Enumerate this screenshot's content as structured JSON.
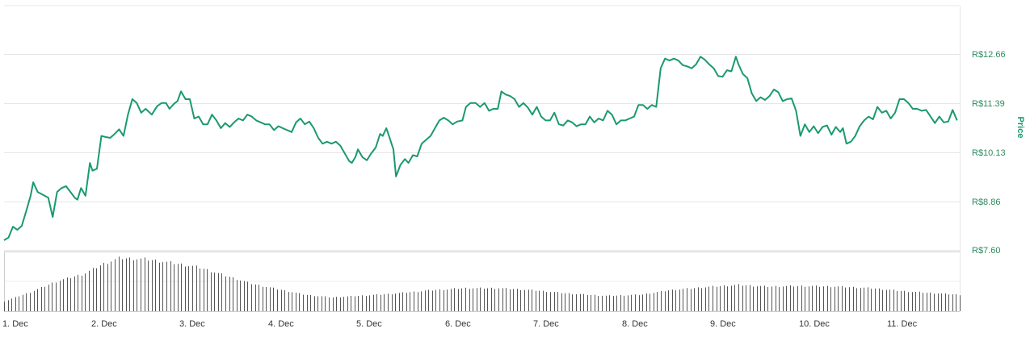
{
  "chart_data": {
    "type": "line",
    "ylabel": "Price",
    "y_ticks": [
      "R$7.60",
      "R$8.86",
      "R$10.13",
      "R$11.39",
      "R$12.66"
    ],
    "y_tick_values": [
      7.6,
      8.86,
      10.13,
      11.39,
      12.66
    ],
    "ylim": [
      7.6,
      13.92
    ],
    "x_ticks": [
      "1. Dec",
      "2. Dec",
      "3. Dec",
      "4. Dec",
      "5. Dec",
      "6. Dec",
      "7. Dec",
      "8. Dec",
      "9. Dec",
      "10. Dec",
      "11. Dec"
    ],
    "xlim": [
      0,
      10.8
    ],
    "grid": true,
    "colors": {
      "line": "#1a9a6c",
      "volume": "#555555",
      "grid": "#e6e6e6"
    },
    "series": [
      {
        "values": [
          [
            0.0,
            7.85
          ],
          [
            0.05,
            7.92
          ],
          [
            0.1,
            8.2
          ],
          [
            0.15,
            8.12
          ],
          [
            0.2,
            8.22
          ],
          [
            0.25,
            8.6
          ],
          [
            0.3,
            9.0
          ],
          [
            0.33,
            9.35
          ],
          [
            0.38,
            9.1
          ],
          [
            0.42,
            9.05
          ],
          [
            0.5,
            8.95
          ],
          [
            0.55,
            8.45
          ],
          [
            0.6,
            9.1
          ],
          [
            0.65,
            9.2
          ],
          [
            0.7,
            9.25
          ],
          [
            0.75,
            9.1
          ],
          [
            0.8,
            8.95
          ],
          [
            0.83,
            8.9
          ],
          [
            0.87,
            9.2
          ],
          [
            0.92,
            9.0
          ],
          [
            0.97,
            9.85
          ],
          [
            1.0,
            9.65
          ],
          [
            1.05,
            9.7
          ],
          [
            1.1,
            10.55
          ],
          [
            1.15,
            10.52
          ],
          [
            1.2,
            10.5
          ],
          [
            1.25,
            10.6
          ],
          [
            1.3,
            10.72
          ],
          [
            1.35,
            10.55
          ],
          [
            1.4,
            11.1
          ],
          [
            1.45,
            11.5
          ],
          [
            1.5,
            11.4
          ],
          [
            1.55,
            11.15
          ],
          [
            1.6,
            11.25
          ],
          [
            1.67,
            11.1
          ],
          [
            1.73,
            11.32
          ],
          [
            1.78,
            11.4
          ],
          [
            1.83,
            11.4
          ],
          [
            1.87,
            11.25
          ],
          [
            1.92,
            11.38
          ],
          [
            1.96,
            11.45
          ],
          [
            2.0,
            11.7
          ],
          [
            2.05,
            11.5
          ],
          [
            2.1,
            11.5
          ],
          [
            2.15,
            11.0
          ],
          [
            2.2,
            11.05
          ],
          [
            2.25,
            10.85
          ],
          [
            2.3,
            10.85
          ],
          [
            2.35,
            11.1
          ],
          [
            2.4,
            10.95
          ],
          [
            2.45,
            10.75
          ],
          [
            2.5,
            10.88
          ],
          [
            2.55,
            10.78
          ],
          [
            2.6,
            10.9
          ],
          [
            2.65,
            11.0
          ],
          [
            2.7,
            10.95
          ],
          [
            2.75,
            11.1
          ],
          [
            2.8,
            11.05
          ],
          [
            2.85,
            10.95
          ],
          [
            2.9,
            10.9
          ],
          [
            2.95,
            10.85
          ],
          [
            3.0,
            10.85
          ],
          [
            3.05,
            10.7
          ],
          [
            3.1,
            10.8
          ],
          [
            3.15,
            10.75
          ],
          [
            3.2,
            10.7
          ],
          [
            3.25,
            10.65
          ],
          [
            3.3,
            10.9
          ],
          [
            3.35,
            11.0
          ],
          [
            3.4,
            10.85
          ],
          [
            3.45,
            10.92
          ],
          [
            3.5,
            10.75
          ],
          [
            3.55,
            10.5
          ],
          [
            3.6,
            10.35
          ],
          [
            3.65,
            10.4
          ],
          [
            3.7,
            10.35
          ],
          [
            3.75,
            10.4
          ],
          [
            3.8,
            10.3
          ],
          [
            3.85,
            10.1
          ],
          [
            3.9,
            9.9
          ],
          [
            3.93,
            9.85
          ],
          [
            3.97,
            10.0
          ],
          [
            4.0,
            10.2
          ],
          [
            4.05,
            10.0
          ],
          [
            4.1,
            9.92
          ],
          [
            4.15,
            10.1
          ],
          [
            4.2,
            10.25
          ],
          [
            4.25,
            10.6
          ],
          [
            4.28,
            10.55
          ],
          [
            4.32,
            10.75
          ],
          [
            4.35,
            10.55
          ],
          [
            4.4,
            10.2
          ],
          [
            4.43,
            9.5
          ],
          [
            4.48,
            9.8
          ],
          [
            4.53,
            9.95
          ],
          [
            4.57,
            9.85
          ],
          [
            4.62,
            10.05
          ],
          [
            4.67,
            10.02
          ],
          [
            4.72,
            10.35
          ],
          [
            4.77,
            10.45
          ],
          [
            4.82,
            10.55
          ],
          [
            4.87,
            10.75
          ],
          [
            4.92,
            10.95
          ],
          [
            4.97,
            11.02
          ],
          [
            5.02,
            10.95
          ],
          [
            5.07,
            10.85
          ],
          [
            5.12,
            10.92
          ],
          [
            5.18,
            10.95
          ],
          [
            5.22,
            11.3
          ],
          [
            5.27,
            11.4
          ],
          [
            5.33,
            11.4
          ],
          [
            5.38,
            11.3
          ],
          [
            5.43,
            11.4
          ],
          [
            5.48,
            11.2
          ],
          [
            5.53,
            11.25
          ],
          [
            5.58,
            11.25
          ],
          [
            5.62,
            11.7
          ],
          [
            5.67,
            11.62
          ],
          [
            5.72,
            11.58
          ],
          [
            5.77,
            11.5
          ],
          [
            5.82,
            11.3
          ],
          [
            5.87,
            11.4
          ],
          [
            5.92,
            11.28
          ],
          [
            5.97,
            11.1
          ],
          [
            6.02,
            11.3
          ],
          [
            6.07,
            11.05
          ],
          [
            6.12,
            10.95
          ],
          [
            6.17,
            10.95
          ],
          [
            6.22,
            11.15
          ],
          [
            6.27,
            10.85
          ],
          [
            6.32,
            10.82
          ],
          [
            6.37,
            10.95
          ],
          [
            6.42,
            10.9
          ],
          [
            6.47,
            10.8
          ],
          [
            6.52,
            10.85
          ],
          [
            6.57,
            10.85
          ],
          [
            6.62,
            11.05
          ],
          [
            6.67,
            10.9
          ],
          [
            6.72,
            11.0
          ],
          [
            6.77,
            10.95
          ],
          [
            6.82,
            11.2
          ],
          [
            6.87,
            11.1
          ],
          [
            6.92,
            10.85
          ],
          [
            6.97,
            10.95
          ],
          [
            7.02,
            10.95
          ],
          [
            7.07,
            11.0
          ],
          [
            7.12,
            11.05
          ],
          [
            7.17,
            11.35
          ],
          [
            7.22,
            11.35
          ],
          [
            7.27,
            11.25
          ],
          [
            7.32,
            11.35
          ],
          [
            7.37,
            11.3
          ],
          [
            7.42,
            12.3
          ],
          [
            7.47,
            12.55
          ],
          [
            7.52,
            12.5
          ],
          [
            7.57,
            12.55
          ],
          [
            7.62,
            12.5
          ],
          [
            7.67,
            12.38
          ],
          [
            7.72,
            12.35
          ],
          [
            7.77,
            12.3
          ],
          [
            7.82,
            12.4
          ],
          [
            7.87,
            12.6
          ],
          [
            7.92,
            12.52
          ],
          [
            7.97,
            12.4
          ],
          [
            8.02,
            12.3
          ],
          [
            8.07,
            12.1
          ],
          [
            8.12,
            12.08
          ],
          [
            8.17,
            12.25
          ],
          [
            8.22,
            12.22
          ],
          [
            8.27,
            12.6
          ],
          [
            8.3,
            12.4
          ],
          [
            8.35,
            12.15
          ],
          [
            8.4,
            12.05
          ],
          [
            8.45,
            11.65
          ],
          [
            8.5,
            11.45
          ],
          [
            8.55,
            11.55
          ],
          [
            8.6,
            11.48
          ],
          [
            8.65,
            11.58
          ],
          [
            8.7,
            11.75
          ],
          [
            8.75,
            11.68
          ],
          [
            8.8,
            11.45
          ],
          [
            8.85,
            11.5
          ],
          [
            8.9,
            11.52
          ],
          [
            8.95,
            11.2
          ],
          [
            9.0,
            10.55
          ],
          [
            9.05,
            10.85
          ],
          [
            9.1,
            10.65
          ],
          [
            9.15,
            10.8
          ],
          [
            9.2,
            10.62
          ],
          [
            9.25,
            10.78
          ],
          [
            9.3,
            10.82
          ],
          [
            9.35,
            10.58
          ],
          [
            9.4,
            10.78
          ],
          [
            9.45,
            10.65
          ],
          [
            9.48,
            10.75
          ],
          [
            9.52,
            10.35
          ],
          [
            9.57,
            10.4
          ],
          [
            9.62,
            10.55
          ],
          [
            9.67,
            10.8
          ],
          [
            9.72,
            10.95
          ],
          [
            9.77,
            11.05
          ],
          [
            9.82,
            10.98
          ],
          [
            9.87,
            11.3
          ],
          [
            9.92,
            11.15
          ],
          [
            9.97,
            11.2
          ],
          [
            10.02,
            11.0
          ],
          [
            10.07,
            11.15
          ],
          [
            10.12,
            11.5
          ],
          [
            10.17,
            11.5
          ],
          [
            10.22,
            11.4
          ],
          [
            10.27,
            11.25
          ],
          [
            10.32,
            11.25
          ],
          [
            10.37,
            11.2
          ],
          [
            10.42,
            11.22
          ],
          [
            10.47,
            11.05
          ],
          [
            10.52,
            10.88
          ],
          [
            10.57,
            11.05
          ],
          [
            10.62,
            10.9
          ],
          [
            10.67,
            10.92
          ],
          [
            10.72,
            11.22
          ],
          [
            10.77,
            10.95
          ]
        ]
      }
    ],
    "volume_profile": [
      [
        0,
        0.18
      ],
      [
        0.3,
        0.35
      ],
      [
        0.6,
        0.55
      ],
      [
        0.9,
        0.68
      ],
      [
        1.1,
        0.85
      ],
      [
        1.3,
        0.97
      ],
      [
        1.6,
        0.95
      ],
      [
        1.9,
        0.88
      ],
      [
        2.2,
        0.8
      ],
      [
        2.5,
        0.65
      ],
      [
        2.8,
        0.5
      ],
      [
        3.1,
        0.4
      ],
      [
        3.4,
        0.3
      ],
      [
        3.7,
        0.25
      ],
      [
        4.0,
        0.28
      ],
      [
        4.4,
        0.32
      ],
      [
        4.8,
        0.38
      ],
      [
        5.2,
        0.42
      ],
      [
        5.6,
        0.42
      ],
      [
        6.0,
        0.38
      ],
      [
        6.4,
        0.32
      ],
      [
        6.8,
        0.28
      ],
      [
        7.2,
        0.3
      ],
      [
        7.5,
        0.38
      ],
      [
        8.0,
        0.45
      ],
      [
        8.3,
        0.48
      ],
      [
        8.6,
        0.45
      ],
      [
        9.0,
        0.46
      ],
      [
        9.4,
        0.45
      ],
      [
        9.8,
        0.42
      ],
      [
        10.2,
        0.36
      ],
      [
        10.6,
        0.32
      ],
      [
        10.8,
        0.3
      ]
    ]
  }
}
